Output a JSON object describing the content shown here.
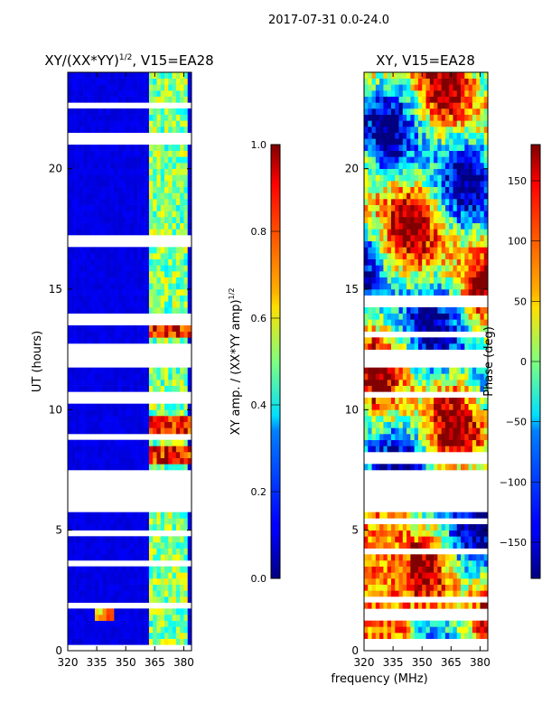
{
  "page": {
    "suptitle": "2017-07-31 0.0-24.0",
    "xlabel": "frequency (MHz)"
  },
  "chart_data": [
    {
      "type": "heatmap",
      "title": "XY/(XX*YY)",
      "title_exp": "1/2",
      "title_suffix": ", V15=EA28",
      "ylabel": "UT (hours)",
      "xlim": [
        320,
        384
      ],
      "ylim": [
        0,
        24
      ],
      "xticks": [
        320,
        335,
        350,
        365,
        380
      ],
      "yticks": [
        0,
        5,
        10,
        15,
        20
      ],
      "colorbar": {
        "label": "XY amp. / (XX*YY amp)",
        "label_exp": "1/2",
        "range": [
          0.0,
          1.0
        ],
        "ticks": [
          "0.0",
          "0.2",
          "0.4",
          "0.6",
          "0.8",
          "1.0"
        ],
        "tick_values": [
          0.0,
          0.2,
          0.4,
          0.6,
          0.8,
          1.0
        ]
      },
      "data_gap_hours": [
        5.8,
        7.5
      ],
      "bright_channel_bands_mhz": [
        [
          361.5,
          365.5
        ],
        [
          366.5,
          371
        ],
        [
          372.5,
          375
        ],
        [
          377,
          381
        ]
      ],
      "colormap": "jet"
    },
    {
      "type": "heatmap",
      "title": "XY, V15=EA28",
      "ylabel": "",
      "xlim": [
        320,
        384
      ],
      "ylim": [
        0,
        24
      ],
      "xticks": [
        320,
        335,
        350,
        365,
        380
      ],
      "yticks": [
        0,
        5,
        10,
        15,
        20
      ],
      "colorbar": {
        "label": "Phase (deg)",
        "range": [
          -180,
          180
        ],
        "ticks": [
          "−150",
          "−100",
          "−50",
          "0",
          "50",
          "100",
          "150"
        ],
        "tick_values": [
          -150,
          -100,
          -50,
          0,
          50,
          100,
          150
        ]
      },
      "data_gap_hours": [
        5.8,
        7.5
      ],
      "colormap": "jet"
    }
  ]
}
